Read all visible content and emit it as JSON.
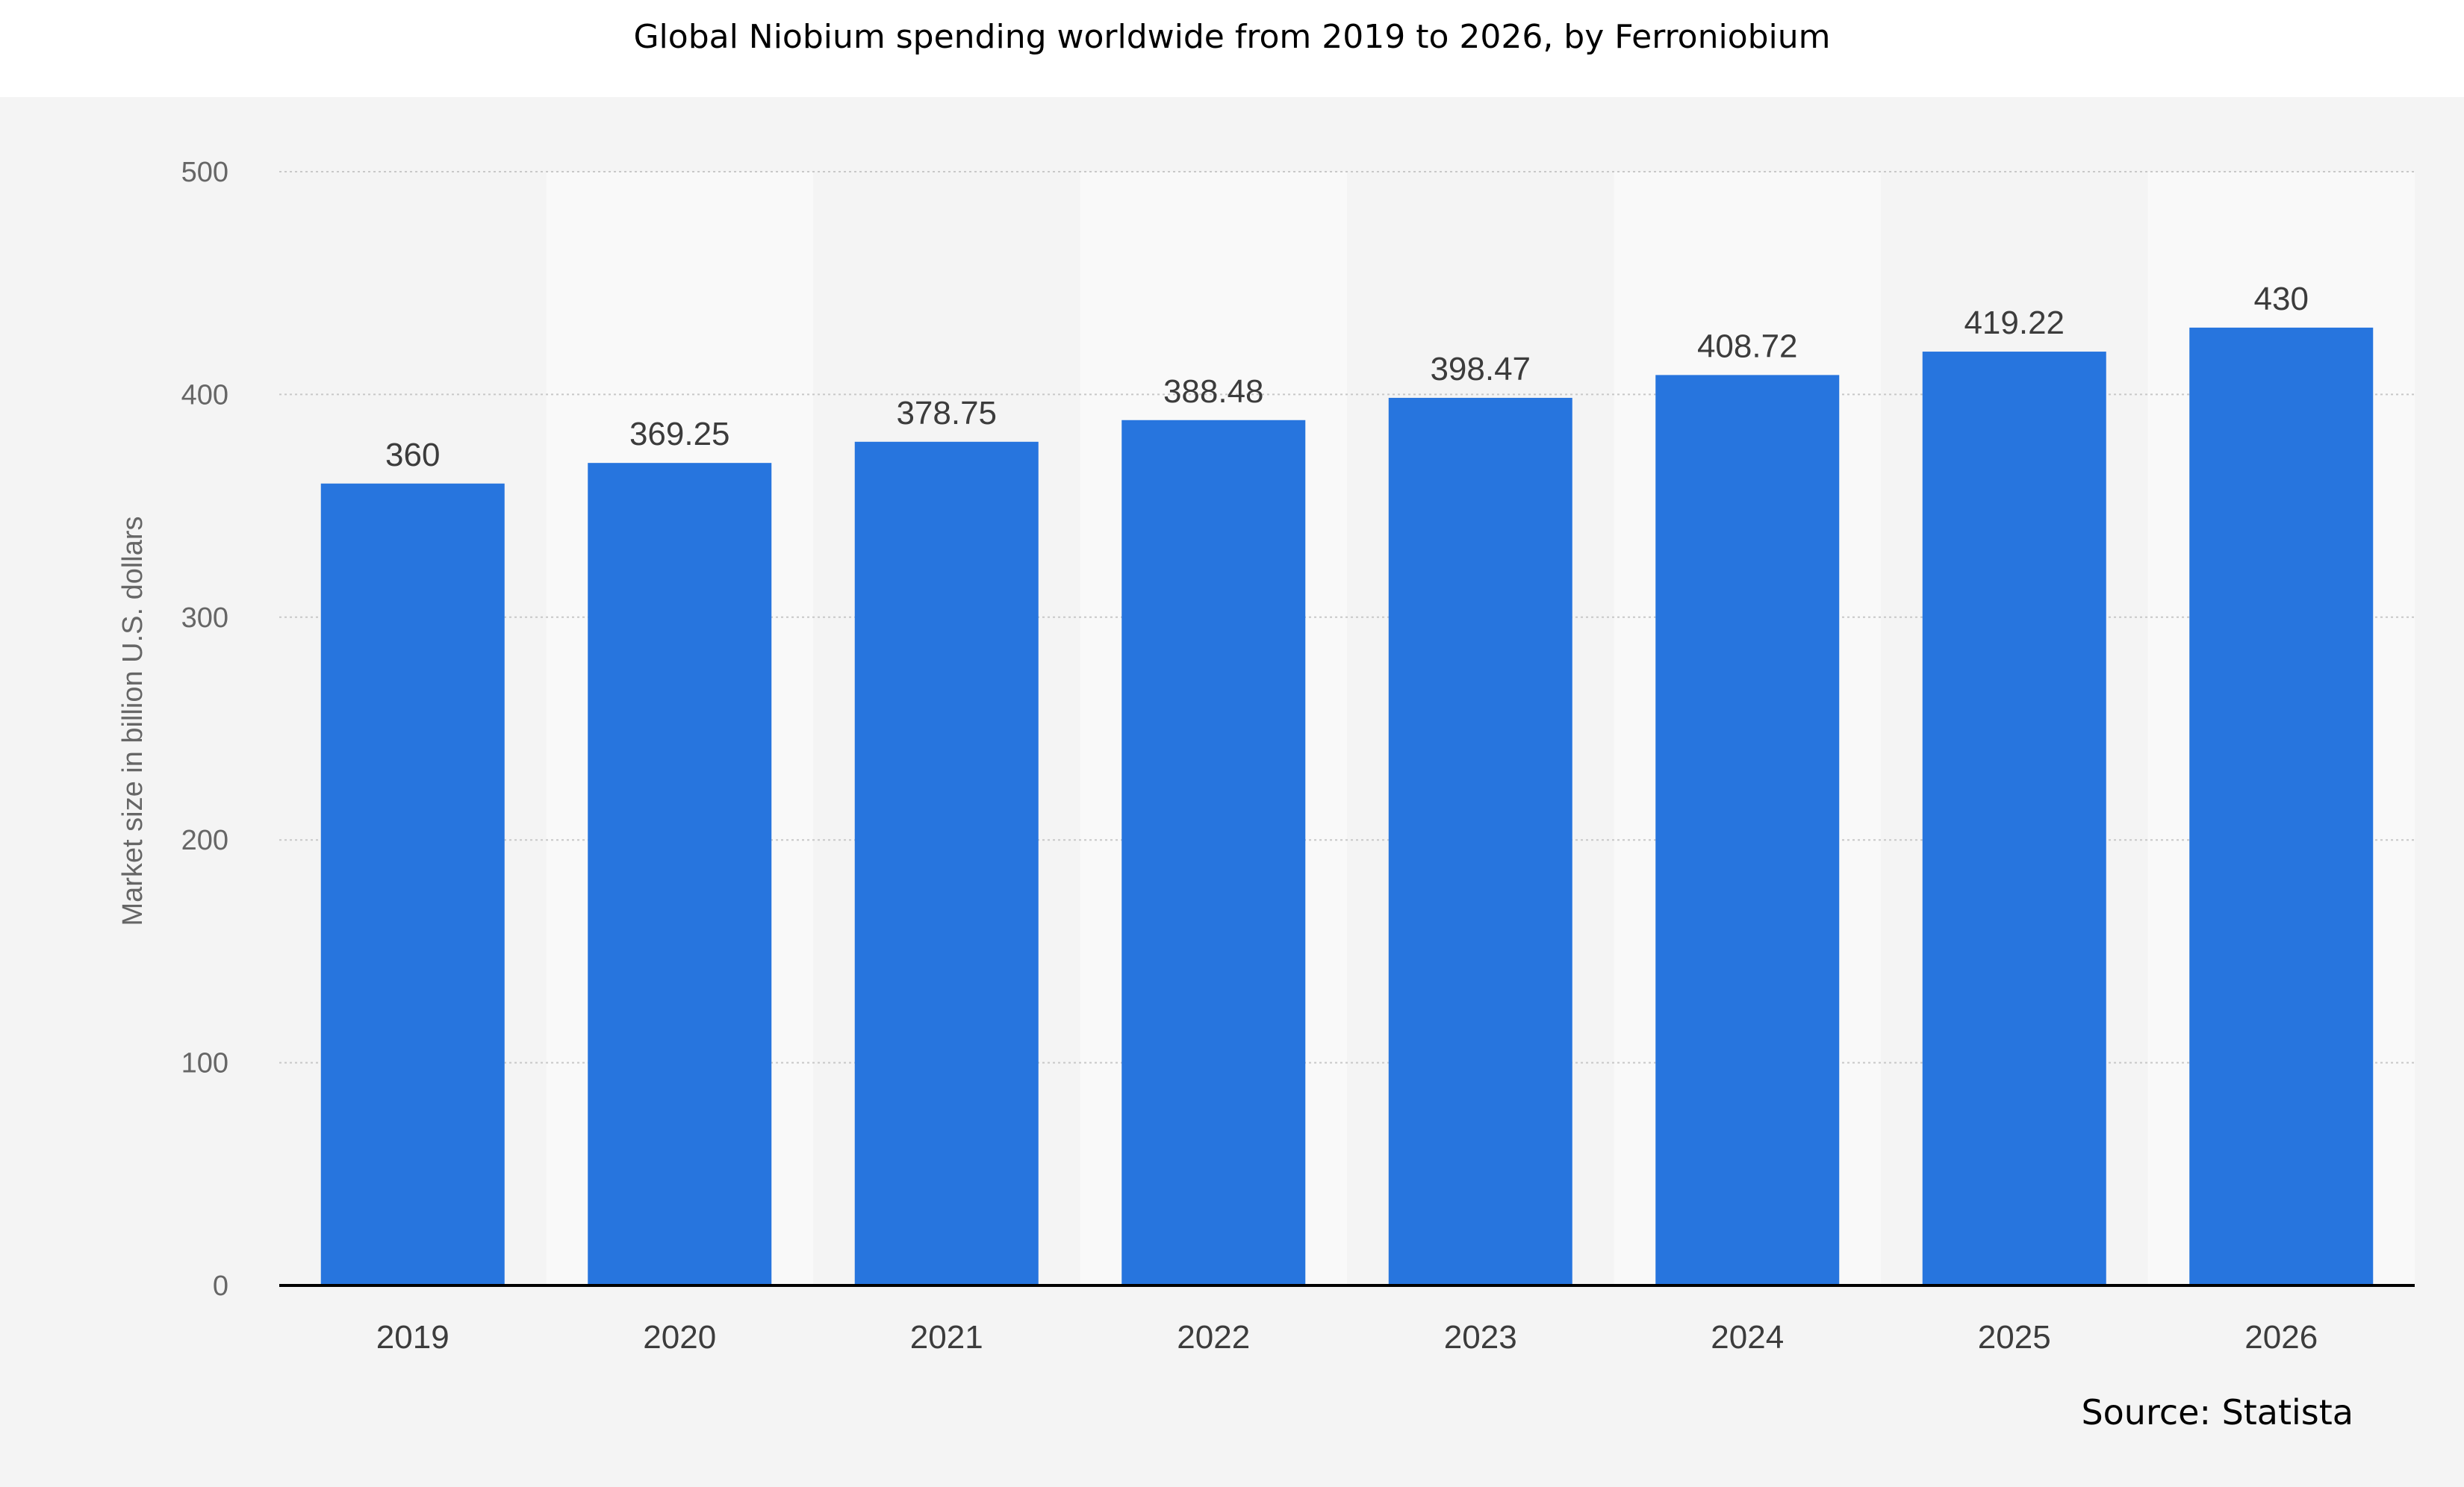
{
  "title": "Global Niobium spending worldwide from 2019 to 2026, by Ferroniobium",
  "source_label": "Source: Statista",
  "chart_data": {
    "type": "bar",
    "title": "Global Niobium spending worldwide from 2019 to 2026, by Ferroniobium",
    "xlabel": "",
    "ylabel": "Market size in billion U.S. dollars",
    "categories": [
      "2019",
      "2020",
      "2021",
      "2022",
      "2023",
      "2024",
      "2025",
      "2026"
    ],
    "values": [
      360,
      369.25,
      378.75,
      388.48,
      398.47,
      408.72,
      419.22,
      430
    ],
    "value_labels": [
      "360",
      "369.25",
      "378.75",
      "388.48",
      "398.47",
      "408.72",
      "419.22",
      "430"
    ],
    "ylim": [
      0,
      500
    ],
    "yticks": [
      0,
      100,
      200,
      300,
      400,
      500
    ],
    "ytick_labels": [
      "0",
      "100",
      "200",
      "300",
      "400",
      "500"
    ],
    "grid": true,
    "legend": "none",
    "bar_color": "#2775de",
    "alt_band_color": "#f9f9f9"
  }
}
